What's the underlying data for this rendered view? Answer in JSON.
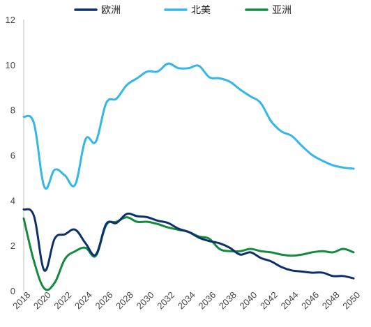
{
  "chart_data": {
    "type": "line",
    "title": "",
    "xlabel": "",
    "ylabel": "",
    "ylim": [
      0,
      12
    ],
    "xlim": [
      2018,
      2050
    ],
    "yticks": [
      "0",
      "2",
      "4",
      "6",
      "8",
      "10",
      "12"
    ],
    "xticks": [
      "2018",
      "2020",
      "2022",
      "2024",
      "2026",
      "2028",
      "2030",
      "2032",
      "2034",
      "2036",
      "2038",
      "2040",
      "2042",
      "2044",
      "2046",
      "2048",
      "2050"
    ],
    "grid": false,
    "legend_position": "top",
    "x": [
      2018,
      2019,
      2020,
      2021,
      2022,
      2023,
      2024,
      2025,
      2026,
      2027,
      2028,
      2029,
      2030,
      2031,
      2032,
      2033,
      2034,
      2035,
      2036,
      2037,
      2038,
      2039,
      2040,
      2041,
      2042,
      2043,
      2044,
      2045,
      2046,
      2047,
      2048,
      2049,
      2050
    ],
    "series": [
      {
        "name": "欧洲",
        "color": "#0d2f6e",
        "values": [
          3.6,
          3.3,
          0.9,
          2.3,
          2.5,
          2.7,
          2.1,
          1.6,
          2.95,
          3.0,
          3.4,
          3.3,
          3.25,
          3.1,
          3.0,
          2.75,
          2.6,
          2.35,
          2.2,
          2.1,
          1.9,
          1.6,
          1.7,
          1.45,
          1.3,
          1.05,
          0.9,
          0.85,
          0.8,
          0.8,
          0.65,
          0.65,
          0.55
        ]
      },
      {
        "name": "北美",
        "color": "#33b6ea",
        "values": [
          7.7,
          7.4,
          4.6,
          5.35,
          5.1,
          4.7,
          6.7,
          6.6,
          8.3,
          8.5,
          9.1,
          9.4,
          9.7,
          9.7,
          10.05,
          9.85,
          9.85,
          9.95,
          9.45,
          9.4,
          9.25,
          8.9,
          8.6,
          8.3,
          7.5,
          7.05,
          6.85,
          6.4,
          6.0,
          5.75,
          5.55,
          5.45,
          5.4
        ]
      },
      {
        "name": "亚洲",
        "color": "#148a3c",
        "values": [
          3.2,
          1.3,
          0.1,
          0.35,
          1.4,
          1.75,
          1.9,
          1.55,
          2.9,
          3.05,
          3.25,
          3.05,
          3.05,
          2.95,
          2.8,
          2.7,
          2.6,
          2.4,
          2.3,
          1.85,
          1.75,
          1.75,
          1.85,
          1.75,
          1.7,
          1.6,
          1.55,
          1.6,
          1.7,
          1.75,
          1.7,
          1.85,
          1.7
        ]
      }
    ]
  }
}
